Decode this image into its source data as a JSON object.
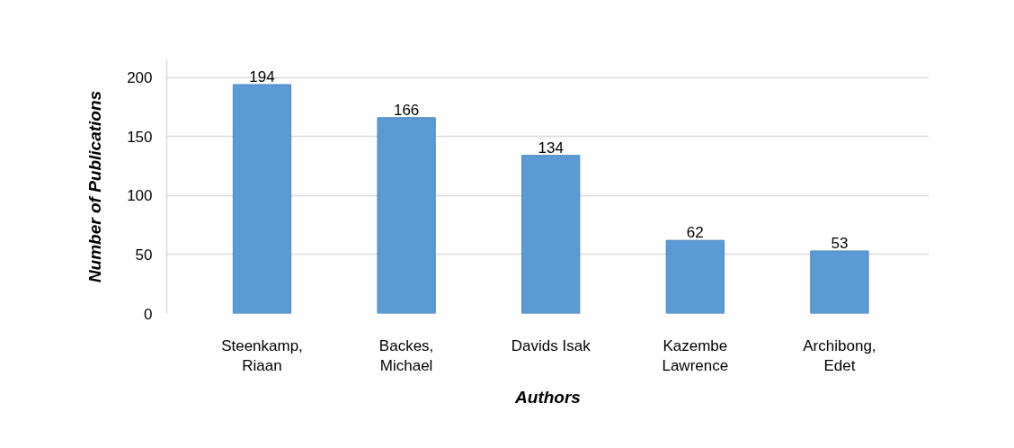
{
  "chart_data": {
    "type": "bar",
    "xlabel": "Authors",
    "ylabel": "Number of Publications",
    "categories": [
      "Steenkamp,\nRiaan",
      "Backes,\nMichael",
      "Davids Isak",
      "Kazembe\nLawrence",
      "Archibong,\nEdet"
    ],
    "values": [
      194,
      166,
      134,
      62,
      53
    ],
    "color": "#5b9bd5",
    "ylim": [
      0,
      215
    ],
    "yticks": [
      0,
      50,
      100,
      150,
      200
    ],
    "grid": "y",
    "data_labels": true
  }
}
